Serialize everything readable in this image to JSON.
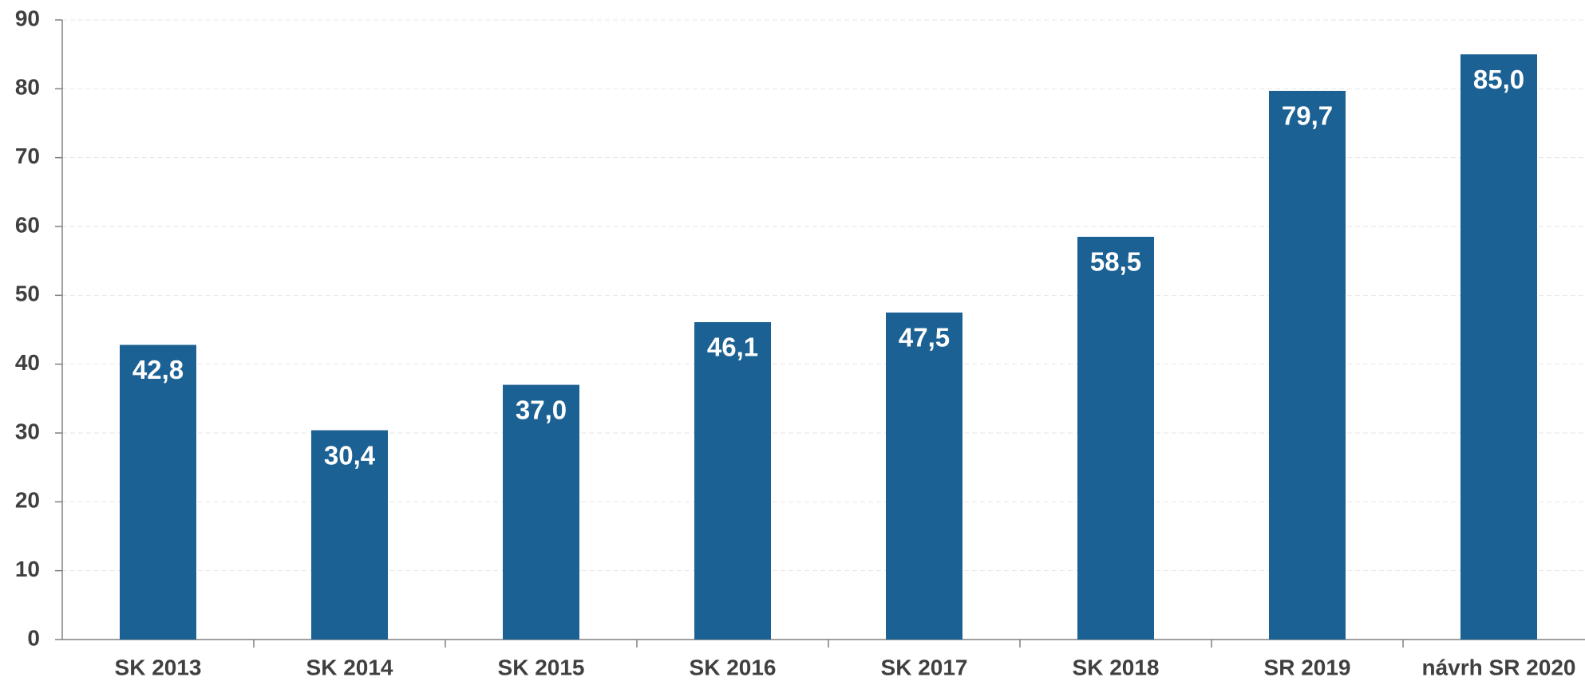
{
  "chart_data": {
    "type": "bar",
    "categories": [
      "SK 2013",
      "SK 2014",
      "SK 2015",
      "SK 2016",
      "SK 2017",
      "SK 2018",
      "SR 2019",
      "návrh SR 2020"
    ],
    "values": [
      42.8,
      30.4,
      37.0,
      46.1,
      47.5,
      58.5,
      79.7,
      85.0
    ],
    "value_labels": [
      "42,8",
      "30,4",
      "37,0",
      "46,1",
      "47,5",
      "58,5",
      "79,7",
      "85,0"
    ],
    "color": "#1c6193",
    "ylim": [
      0,
      90
    ],
    "yticks": [
      0,
      10,
      20,
      30,
      40,
      50,
      60,
      70,
      80,
      90
    ],
    "grid": true
  }
}
